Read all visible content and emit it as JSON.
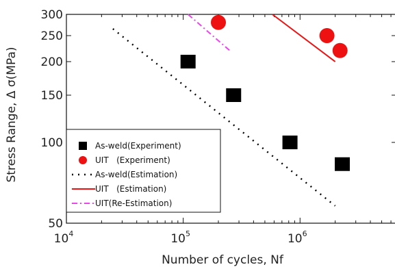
{
  "chart_data": {
    "type": "scatter",
    "xlabel": "Number of cycles, Nf",
    "ylabel": "Stress Range, Δ σ(MPa)",
    "xscale": "log",
    "yscale": "log",
    "xlim": [
      10000,
      6500000
    ],
    "ylim": [
      50,
      300
    ],
    "x_ticks": [
      {
        "value": 10000,
        "base": "10",
        "exp": "4"
      },
      {
        "value": 100000,
        "base": "10",
        "exp": "5"
      },
      {
        "value": 1000000,
        "base": "10",
        "exp": "6"
      }
    ],
    "y_ticks": [
      {
        "value": 50,
        "label": "50"
      },
      {
        "value": 100,
        "label": "100"
      },
      {
        "value": 150,
        "label": "150"
      },
      {
        "value": 200,
        "label": "200"
      },
      {
        "value": 250,
        "label": "250"
      },
      {
        "value": 300,
        "label": "300"
      }
    ],
    "grid": false,
    "legend_position": "bottom-left",
    "series": [
      {
        "name": "As-weld(Experiment)",
        "kind": "marker",
        "marker": "square",
        "color": "#000000",
        "x": [
          110000,
          270000,
          820000,
          2300000
        ],
        "y": [
          200,
          150,
          100,
          83
        ]
      },
      {
        "name": "UIT   (Experiment)",
        "kind": "marker",
        "marker": "circle",
        "color": "#ee1111",
        "x": [
          200000,
          1700000,
          2200000
        ],
        "y": [
          280,
          250,
          220
        ]
      },
      {
        "name": "As-weld(Estimation)",
        "kind": "line",
        "dash": "dotted",
        "color": "#000000",
        "x": [
          25000,
          2000000
        ],
        "y": [
          265,
          58
        ]
      },
      {
        "name": "UIT   (Estimation)",
        "kind": "line",
        "dash": "solid",
        "color": "#ee1111",
        "x": [
          580000,
          2000000
        ],
        "y": [
          300,
          200
        ]
      },
      {
        "name": "UIT(Re-Estimation)",
        "kind": "line",
        "dash": "dashdot",
        "color": "#ee44ee",
        "x": [
          110000,
          250000
        ],
        "y": [
          300,
          220
        ]
      }
    ]
  }
}
